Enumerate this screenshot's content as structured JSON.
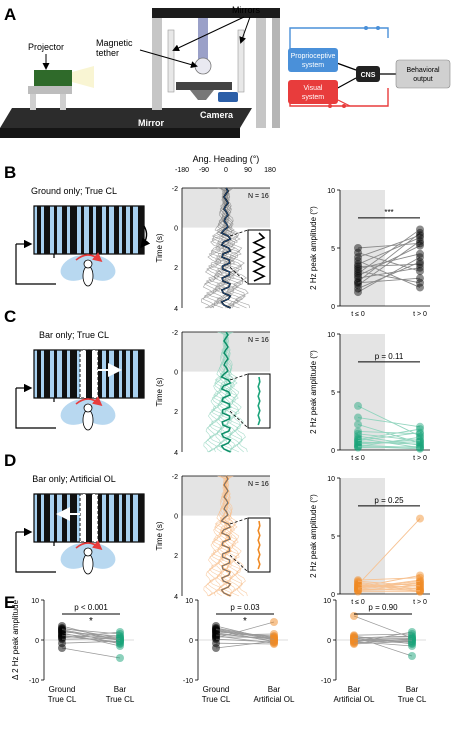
{
  "panel_labels": {
    "a": "A",
    "b": "B",
    "c": "C",
    "d": "D",
    "e": "E"
  },
  "setup": {
    "projector": "Projector",
    "magnetic_tether": "Magnetic\ntether",
    "mirrors": "Mirrors",
    "mirror": "Mirror",
    "camera": "Camera"
  },
  "diagram": {
    "proprio": "Proprioceptive\nsystem",
    "visual": "Visual\nsystem",
    "cns": "CNS",
    "output": "Behavioral\noutput",
    "colors": {
      "proprio": "#4a90d9",
      "visual": "#e83c3c",
      "cns": "#222222",
      "output": "#d0d0d0"
    }
  },
  "conditions": {
    "b": "Ground only; True CL",
    "c": "Bar only; True CL",
    "d": "Bar only; Artificial OL"
  },
  "heading_axis": {
    "title": "Ang. Heading (°)",
    "ticks": [
      "-180",
      "-90",
      "0",
      "90",
      "180"
    ],
    "time_label": "Time (s)",
    "time_ticks": [
      "-2",
      "0",
      "2",
      "4"
    ],
    "n_label": "N = 16"
  },
  "amp_axis": {
    "ylabel": "2 Hz peak amplitude (°)",
    "yticks": [
      "0",
      "5",
      "10"
    ],
    "xticks": [
      "t ≤ 0",
      "t > 0"
    ]
  },
  "stats": {
    "b": "***",
    "c": "p = 0.11",
    "d": "p = 0.25"
  },
  "series_colors": {
    "ground": "#000000",
    "bar_cl": "#1aa37a",
    "bar_ol": "#f08a24"
  },
  "chart_data": [
    {
      "type": "scatter",
      "panel": "B",
      "categories": [
        "t ≤ 0",
        "t > 0"
      ],
      "ylabel": "2 Hz peak amplitude (°)",
      "ylim": [
        0,
        10
      ],
      "pairs": [
        [
          1.2,
          4.2
        ],
        [
          1.8,
          5.6
        ],
        [
          2.1,
          6.3
        ],
        [
          2.4,
          3.3
        ],
        [
          2.6,
          5.2
        ],
        [
          2.8,
          6.6
        ],
        [
          3.0,
          2.0
        ],
        [
          3.2,
          4.5
        ],
        [
          3.4,
          3.6
        ],
        [
          3.6,
          5.9
        ],
        [
          3.9,
          1.6
        ],
        [
          4.2,
          6.1
        ],
        [
          4.6,
          3.0
        ],
        [
          5.0,
          5.4
        ],
        [
          2.0,
          2.4
        ],
        [
          1.5,
          3.8
        ]
      ],
      "annotation": "***"
    },
    {
      "type": "scatter",
      "panel": "C",
      "categories": [
        "t ≤ 0",
        "t > 0"
      ],
      "ylabel": "2 Hz peak amplitude (°)",
      "ylim": [
        0,
        10
      ],
      "pairs": [
        [
          3.8,
          1.2
        ],
        [
          2.8,
          2.0
        ],
        [
          2.2,
          0.6
        ],
        [
          1.6,
          1.4
        ],
        [
          1.2,
          0.4
        ],
        [
          0.9,
          1.8
        ],
        [
          0.7,
          0.5
        ],
        [
          0.5,
          0.9
        ],
        [
          0.4,
          0.2
        ],
        [
          0.3,
          1.1
        ],
        [
          0.2,
          0.3
        ],
        [
          0.6,
          0.7
        ],
        [
          1.0,
          0.2
        ],
        [
          0.8,
          1.5
        ],
        [
          0.3,
          0.1
        ],
        [
          1.4,
          0.8
        ]
      ],
      "annotation": "p = 0.11"
    },
    {
      "type": "scatter",
      "panel": "D",
      "categories": [
        "t ≤ 0",
        "t > 0"
      ],
      "ylabel": "2 Hz peak amplitude (°)",
      "ylim": [
        0,
        10
      ],
      "pairs": [
        [
          0.8,
          6.5
        ],
        [
          0.5,
          1.2
        ],
        [
          0.3,
          0.8
        ],
        [
          1.0,
          0.4
        ],
        [
          0.6,
          1.6
        ],
        [
          0.9,
          0.3
        ],
        [
          0.4,
          1.0
        ],
        [
          0.7,
          0.6
        ],
        [
          0.2,
          0.2
        ],
        [
          1.2,
          1.4
        ],
        [
          0.3,
          0.5
        ],
        [
          0.6,
          0.9
        ],
        [
          0.8,
          0.2
        ],
        [
          1.1,
          0.7
        ],
        [
          0.4,
          0.3
        ],
        [
          0.5,
          1.1
        ]
      ],
      "annotation": "p = 0.25"
    },
    {
      "type": "scatter",
      "panel": "E1",
      "categories": [
        "Ground\nTrue CL",
        "Bar\nTrue CL"
      ],
      "ylabel": "Δ 2 Hz peak amplitude",
      "ylim": [
        -10,
        10
      ],
      "pairs": [
        [
          3.0,
          0.5
        ],
        [
          2.5,
          -1.0
        ],
        [
          2.0,
          1.0
        ],
        [
          1.5,
          0.0
        ],
        [
          1.0,
          -0.5
        ],
        [
          0.5,
          2.0
        ],
        [
          -2.0,
          -4.5
        ],
        [
          3.5,
          -0.2
        ],
        [
          2.2,
          0.3
        ],
        [
          1.8,
          -1.5
        ],
        [
          0.8,
          0.8
        ],
        [
          -0.8,
          -0.3
        ],
        [
          2.8,
          1.5
        ],
        [
          1.2,
          -0.8
        ],
        [
          0.2,
          0.4
        ],
        [
          2.6,
          -0.1
        ]
      ],
      "annotation": "p < 0.001",
      "sig": "*"
    },
    {
      "type": "scatter",
      "panel": "E2",
      "categories": [
        "Ground\nTrue CL",
        "Bar\nArtificial OL"
      ],
      "ylabel": "",
      "ylim": [
        -10,
        10
      ],
      "pairs": [
        [
          3.0,
          0.5
        ],
        [
          2.5,
          -0.5
        ],
        [
          2.0,
          1.0
        ],
        [
          1.5,
          0.2
        ],
        [
          1.0,
          -0.8
        ],
        [
          0.5,
          4.5
        ],
        [
          -2.0,
          -0.3
        ],
        [
          3.5,
          0.0
        ],
        [
          2.2,
          0.8
        ],
        [
          1.8,
          -0.2
        ],
        [
          0.8,
          0.6
        ],
        [
          -0.8,
          -1.0
        ],
        [
          2.8,
          0.3
        ],
        [
          1.2,
          1.5
        ],
        [
          0.2,
          -0.5
        ],
        [
          2.6,
          0.1
        ]
      ],
      "annotation": "p = 0.03",
      "sig": "*"
    },
    {
      "type": "scatter",
      "panel": "E3",
      "categories": [
        "Bar\nArtificial OL",
        "Bar\nTrue CL"
      ],
      "ylabel": "",
      "ylim": [
        -10,
        10
      ],
      "pairs": [
        [
          6.0,
          0.5
        ],
        [
          1.0,
          -1.0
        ],
        [
          0.5,
          1.0
        ],
        [
          -0.3,
          0.2
        ],
        [
          0.3,
          -0.5
        ],
        [
          -0.6,
          2.0
        ],
        [
          0.8,
          -4.0
        ],
        [
          -1.0,
          -0.3
        ],
        [
          0.2,
          0.4
        ],
        [
          -0.4,
          -1.5
        ],
        [
          0.6,
          0.8
        ],
        [
          -0.2,
          0.1
        ],
        [
          1.2,
          1.5
        ],
        [
          0.0,
          -0.8
        ],
        [
          -0.8,
          0.3
        ],
        [
          0.4,
          -0.2
        ]
      ],
      "annotation": "p = 0.90"
    }
  ],
  "e_axis": {
    "ylabel": "Δ 2 Hz peak amplitude",
    "yticks": [
      "10",
      "0",
      "-10"
    ]
  }
}
